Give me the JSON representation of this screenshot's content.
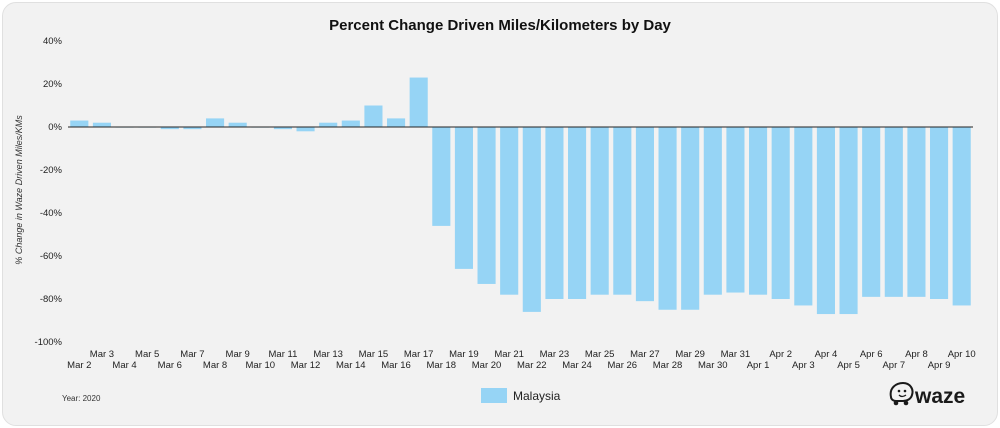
{
  "chart_data": {
    "type": "bar",
    "title": "Percent Change Driven Miles/Kilometers by Day",
    "ylabel": "% Change in Waze Driven Miles/KMs",
    "xlabel": "",
    "ylim": [
      -100,
      40
    ],
    "yticks": [
      "40%",
      "20%",
      "0%",
      "-20%",
      "-40%",
      "-60%",
      "-80%",
      "-100%"
    ],
    "yticks_values": [
      40,
      20,
      0,
      -20,
      -40,
      -60,
      -80,
      -100
    ],
    "categories": [
      "Mar 2",
      "Mar 3",
      "Mar 4",
      "Mar 5",
      "Mar 6",
      "Mar 7",
      "Mar 8",
      "Mar 9",
      "Mar 10",
      "Mar 11",
      "Mar 12",
      "Mar 13",
      "Mar 14",
      "Mar 15",
      "Mar 16",
      "Mar 17",
      "Mar 18",
      "Mar 19",
      "Mar 20",
      "Mar 21",
      "Mar 22",
      "Mar 23",
      "Mar 24",
      "Mar 25",
      "Mar 26",
      "Mar 27",
      "Mar 28",
      "Mar 29",
      "Mar 30",
      "Mar 31",
      "Apr 1",
      "Apr 2",
      "Apr 3",
      "Apr 4",
      "Apr 5",
      "Apr 6",
      "Apr 7",
      "Apr 8",
      "Apr 9",
      "Apr 10"
    ],
    "series": [
      {
        "name": "Malaysia",
        "color": "#96d4f5",
        "values": [
          3,
          2,
          0,
          0,
          -1,
          -1,
          4,
          2,
          0,
          -1,
          -2,
          2,
          3,
          10,
          4,
          23,
          -46,
          -66,
          -73,
          -78,
          -86,
          -80,
          -80,
          -78,
          -78,
          -81,
          -85,
          -85,
          -78,
          -77,
          -78,
          -80,
          -83,
          -87,
          -87,
          -79,
          -79,
          -79,
          -80,
          -83
        ]
      }
    ],
    "grid": false,
    "legend_position": "bottom-center",
    "footnote": "Year: 2020"
  },
  "brand": {
    "logo_text": "waze"
  },
  "colors": {
    "background": "#f2f2f2",
    "bar": "#96d4f5",
    "text": "#111111"
  }
}
